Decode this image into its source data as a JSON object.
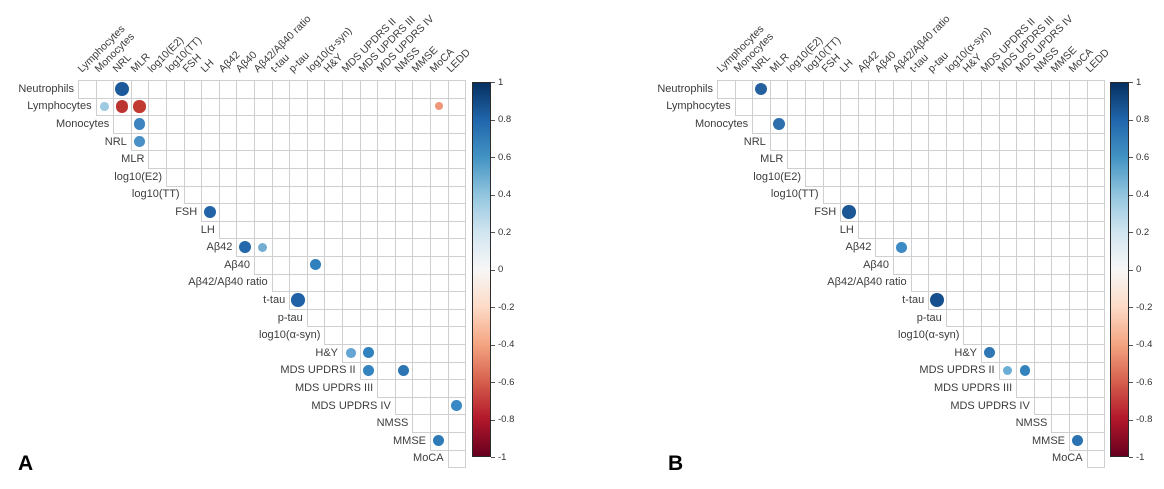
{
  "figure_type": "correlation matrix figure, two panels",
  "chart_data": [
    {
      "type": "heatmap",
      "subtype": "correlation-dot-matrix-upper-triangle",
      "panel_label": "A",
      "rows": [
        "Neutrophils",
        "Lymphocytes",
        "Monocytes",
        "NRL",
        "MLR",
        "log10(E2)",
        "log10(TT)",
        "FSH",
        "LH",
        "Aβ42",
        "Aβ40",
        "Aβ42/Aβ40 ratio",
        "t-tau",
        "p-tau",
        "log10(α-syn)",
        "H&Y",
        "MDS UPDRS II",
        "MDS UPDRS III",
        "MDS UPDRS IV",
        "NMSS",
        "MMSE",
        "MoCA"
      ],
      "columns": [
        "Lymphocytes",
        "Monocytes",
        "NRL",
        "MLR",
        "log10(E2)",
        "log10(TT)",
        "FSH",
        "LH",
        "Aβ42",
        "Aβ40",
        "Aβ42/Aβ40 ratio",
        "t-tau",
        "p-tau",
        "log10(α-syn)",
        "H&Y",
        "MDS UPDRS II",
        "MDS UPDRS III",
        "MDS UPDRS IV",
        "NMSS",
        "MMSE",
        "MoCA",
        "LEDD"
      ],
      "dots": [
        {
          "row": "Neutrophils",
          "col": "NRL",
          "r": 0.9,
          "color": "#1c5a9c"
        },
        {
          "row": "Lymphocytes",
          "col": "Monocytes",
          "r": 0.4,
          "color": "#9ecae1"
        },
        {
          "row": "Lymphocytes",
          "col": "NRL",
          "r": -0.8,
          "color": "#bb3430"
        },
        {
          "row": "Lymphocytes",
          "col": "MLR",
          "r": -0.75,
          "color": "#c23b33"
        },
        {
          "row": "Lymphocytes",
          "col": "MoCA",
          "r": -0.35,
          "color": "#ee9677"
        },
        {
          "row": "Monocytes",
          "col": "MLR",
          "r": 0.65,
          "color": "#3d84c0"
        },
        {
          "row": "NRL",
          "col": "MLR",
          "r": 0.6,
          "color": "#4990c6"
        },
        {
          "row": "FSH",
          "col": "LH",
          "r": 0.8,
          "color": "#2263a8"
        },
        {
          "row": "Aβ42",
          "col": "Aβ40",
          "r": 0.75,
          "color": "#2368ab"
        },
        {
          "row": "Aβ42",
          "col": "Aβ42/Aβ40 ratio",
          "r": 0.45,
          "color": "#74add1"
        },
        {
          "row": "Aβ40",
          "col": "log10(α-syn)",
          "r": 0.6,
          "color": "#3080bd"
        },
        {
          "row": "t-tau",
          "col": "p-tau",
          "r": 0.85,
          "color": "#2161a5"
        },
        {
          "row": "H&Y",
          "col": "MDS UPDRS II",
          "r": 0.5,
          "color": "#64a5d2"
        },
        {
          "row": "H&Y",
          "col": "MDS UPDRS III",
          "r": 0.6,
          "color": "#3282bf"
        },
        {
          "row": "MDS UPDRS II",
          "col": "MDS UPDRS III",
          "r": 0.6,
          "color": "#3484c0"
        },
        {
          "row": "MDS UPDRS II",
          "col": "NMSS",
          "r": 0.65,
          "color": "#2c74b2"
        },
        {
          "row": "MDS UPDRS IV",
          "col": "LEDD",
          "r": 0.6,
          "color": "#3989c4"
        },
        {
          "row": "MMSE",
          "col": "MoCA",
          "r": 0.65,
          "color": "#2e7bb8"
        }
      ],
      "colorbar": {
        "max": 1,
        "min": -1,
        "ticks": [
          "1",
          "0.8",
          "0.6",
          "0.4",
          "0.2",
          "0",
          "-0.2",
          "-0.4",
          "-0.6",
          "-0.8",
          "-1"
        ],
        "gradient": [
          "#053061",
          "#2166ac",
          "#4393c3",
          "#92c5de",
          "#d1e5f0",
          "#f7f7f7",
          "#fddbc7",
          "#f4a582",
          "#d6604d",
          "#b2182b",
          "#67001f"
        ]
      }
    },
    {
      "type": "heatmap",
      "subtype": "correlation-dot-matrix-upper-triangle",
      "panel_label": "B",
      "rows": [
        "Neutrophils",
        "Lymphocytes",
        "Monocytes",
        "NRL",
        "MLR",
        "log10(E2)",
        "log10(TT)",
        "FSH",
        "LH",
        "Aβ42",
        "Aβ40",
        "Aβ42/Aβ40 ratio",
        "t-tau",
        "p-tau",
        "log10(α-syn)",
        "H&Y",
        "MDS UPDRS II",
        "MDS UPDRS III",
        "MDS UPDRS IV",
        "NMSS",
        "MMSE",
        "MoCA"
      ],
      "columns": [
        "Lymphocytes",
        "Monocytes",
        "NRL",
        "MLR",
        "log10(E2)",
        "log10(TT)",
        "FSH",
        "LH",
        "Aβ42",
        "Aβ40",
        "Aβ42/Aβ40 ratio",
        "t-tau",
        "p-tau",
        "log10(α-syn)",
        "H&Y",
        "MDS UPDRS II",
        "MDS UPDRS III",
        "MDS UPDRS IV",
        "NMSS",
        "MMSE",
        "MoCA",
        "LEDD"
      ],
      "dots": [
        {
          "row": "Neutrophils",
          "col": "NRL",
          "r": 0.75,
          "color": "#26619f"
        },
        {
          "row": "Monocytes",
          "col": "MLR",
          "r": 0.7,
          "color": "#2d6fad"
        },
        {
          "row": "FSH",
          "col": "LH",
          "r": 0.85,
          "color": "#1b5794"
        },
        {
          "row": "Aβ42",
          "col": "Aβ42/Aβ40 ratio",
          "r": 0.6,
          "color": "#3d8ac4"
        },
        {
          "row": "t-tau",
          "col": "p-tau",
          "r": 0.9,
          "color": "#164f8e"
        },
        {
          "row": "H&Y",
          "col": "MDS UPDRS II",
          "r": 0.65,
          "color": "#2f77b4"
        },
        {
          "row": "MDS UPDRS II",
          "col": "MDS UPDRS III",
          "r": 0.45,
          "color": "#6aaed6"
        },
        {
          "row": "MDS UPDRS II",
          "col": "MDS UPDRS IV",
          "r": 0.6,
          "color": "#3182bd"
        },
        {
          "row": "MMSE",
          "col": "MoCA",
          "r": 0.65,
          "color": "#2a72b0"
        }
      ],
      "colorbar": {
        "max": 1,
        "min": -1,
        "ticks": [
          "1",
          "0.8",
          "0.6",
          "0.4",
          "0.2",
          "0",
          "-0.2",
          "-0.4",
          "-0.6",
          "-0.8",
          "-1"
        ],
        "gradient": [
          "#053061",
          "#2166ac",
          "#4393c3",
          "#92c5de",
          "#d1e5f0",
          "#f7f7f7",
          "#fddbc7",
          "#f4a582",
          "#d6604d",
          "#b2182b",
          "#67001f"
        ]
      }
    }
  ]
}
